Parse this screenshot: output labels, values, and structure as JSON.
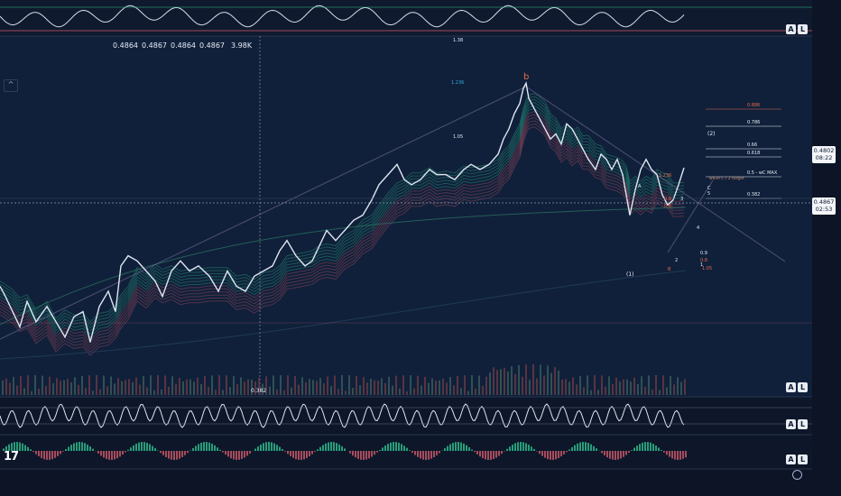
{
  "ohlc": {
    "open": "0.4864",
    "high": "0.4867",
    "low": "0.4864",
    "close": "0.4867",
    "volume": "3.98K"
  },
  "price_tags": {
    "current_price": "0.4867",
    "current_countdown": "02:53",
    "top_price": "0.4802",
    "top_countdown": "08:22"
  },
  "axis_buttons": {
    "auto": "A",
    "log": "L"
  },
  "collapse_symbol": "^",
  "logo_text": "17",
  "colors": {
    "background": "#0f1b30",
    "price": "#dfe6f2",
    "ribbon_green": "#2fbf8f",
    "ribbon_red": "#d05a6a",
    "fib_blue": "#2fa9e0",
    "fib_red": "#e26a4a",
    "crosshair": "#8a94a8"
  },
  "chart_data": {
    "type": "line",
    "title": "",
    "xlabel": "",
    "ylabel": "",
    "price_path": [
      [
        0,
        0.44
      ],
      [
        6,
        0.436
      ],
      [
        14,
        0.43
      ],
      [
        22,
        0.424
      ],
      [
        30,
        0.434
      ],
      [
        40,
        0.426
      ],
      [
        52,
        0.432
      ],
      [
        62,
        0.426
      ],
      [
        72,
        0.42
      ],
      [
        82,
        0.428
      ],
      [
        92,
        0.43
      ],
      [
        100,
        0.418
      ],
      [
        110,
        0.432
      ],
      [
        120,
        0.438
      ],
      [
        128,
        0.43
      ],
      [
        134,
        0.448
      ],
      [
        142,
        0.452
      ],
      [
        152,
        0.45
      ],
      [
        162,
        0.446
      ],
      [
        172,
        0.442
      ],
      [
        180,
        0.436
      ],
      [
        190,
        0.446
      ],
      [
        200,
        0.45
      ],
      [
        210,
        0.446
      ],
      [
        220,
        0.448
      ],
      [
        232,
        0.444
      ],
      [
        242,
        0.438
      ],
      [
        252,
        0.446
      ],
      [
        262,
        0.44
      ],
      [
        272,
        0.438
      ],
      [
        282,
        0.444
      ],
      [
        292,
        0.446
      ],
      [
        302,
        0.448
      ],
      [
        310,
        0.454
      ],
      [
        318,
        0.458
      ],
      [
        328,
        0.452
      ],
      [
        338,
        0.448
      ],
      [
        346,
        0.45
      ],
      [
        354,
        0.456
      ],
      [
        362,
        0.462
      ],
      [
        372,
        0.458
      ],
      [
        382,
        0.462
      ],
      [
        392,
        0.466
      ],
      [
        402,
        0.468
      ],
      [
        412,
        0.474
      ],
      [
        420,
        0.48
      ],
      [
        430,
        0.484
      ],
      [
        440,
        0.488
      ],
      [
        448,
        0.482
      ],
      [
        456,
        0.48
      ],
      [
        466,
        0.482
      ],
      [
        476,
        0.486
      ],
      [
        484,
        0.484
      ],
      [
        494,
        0.484
      ],
      [
        504,
        0.482
      ],
      [
        514,
        0.486
      ],
      [
        522,
        0.488
      ],
      [
        532,
        0.486
      ],
      [
        542,
        0.488
      ],
      [
        552,
        0.492
      ],
      [
        558,
        0.498
      ],
      [
        564,
        0.502
      ],
      [
        570,
        0.508
      ],
      [
        576,
        0.512
      ],
      [
        580,
        0.518
      ],
      [
        583,
        0.52
      ],
      [
        586,
        0.514
      ],
      [
        592,
        0.51
      ],
      [
        598,
        0.506
      ],
      [
        604,
        0.502
      ],
      [
        610,
        0.498
      ],
      [
        616,
        0.5
      ],
      [
        622,
        0.496
      ],
      [
        628,
        0.504
      ],
      [
        634,
        0.502
      ],
      [
        640,
        0.498
      ],
      [
        646,
        0.494
      ],
      [
        652,
        0.49
      ],
      [
        660,
        0.486
      ],
      [
        666,
        0.492
      ],
      [
        672,
        0.49
      ],
      [
        678,
        0.486
      ],
      [
        684,
        0.49
      ],
      [
        690,
        0.484
      ],
      [
        694,
        0.476
      ],
      [
        698,
        0.468
      ],
      [
        704,
        0.478
      ],
      [
        710,
        0.486
      ],
      [
        716,
        0.49
      ],
      [
        722,
        0.486
      ],
      [
        728,
        0.484
      ],
      [
        734,
        0.476
      ],
      [
        740,
        0.472
      ],
      [
        746,
        0.474
      ],
      [
        752,
        0.48
      ],
      [
        758,
        0.4867
      ]
    ],
    "fib_retracement": {
      "ratios": [
        "0.886",
        "0.786",
        "0.66",
        "0.618",
        "0.5",
        "0.382"
      ],
      "extras": [
        "1.236",
        "1.05",
        "1.236",
        "0.9",
        "0.8",
        "0.9",
        "0.8",
        "1.05",
        "0.382",
        "1.38"
      ]
    },
    "wave_labels": [
      "b",
      "(2)",
      "A",
      "C",
      "5",
      "3",
      "4",
      "2",
      "1",
      "B",
      "(1)"
    ],
    "annotations": [
      "wave C / 2 target",
      "5 - wC MAX"
    ]
  }
}
